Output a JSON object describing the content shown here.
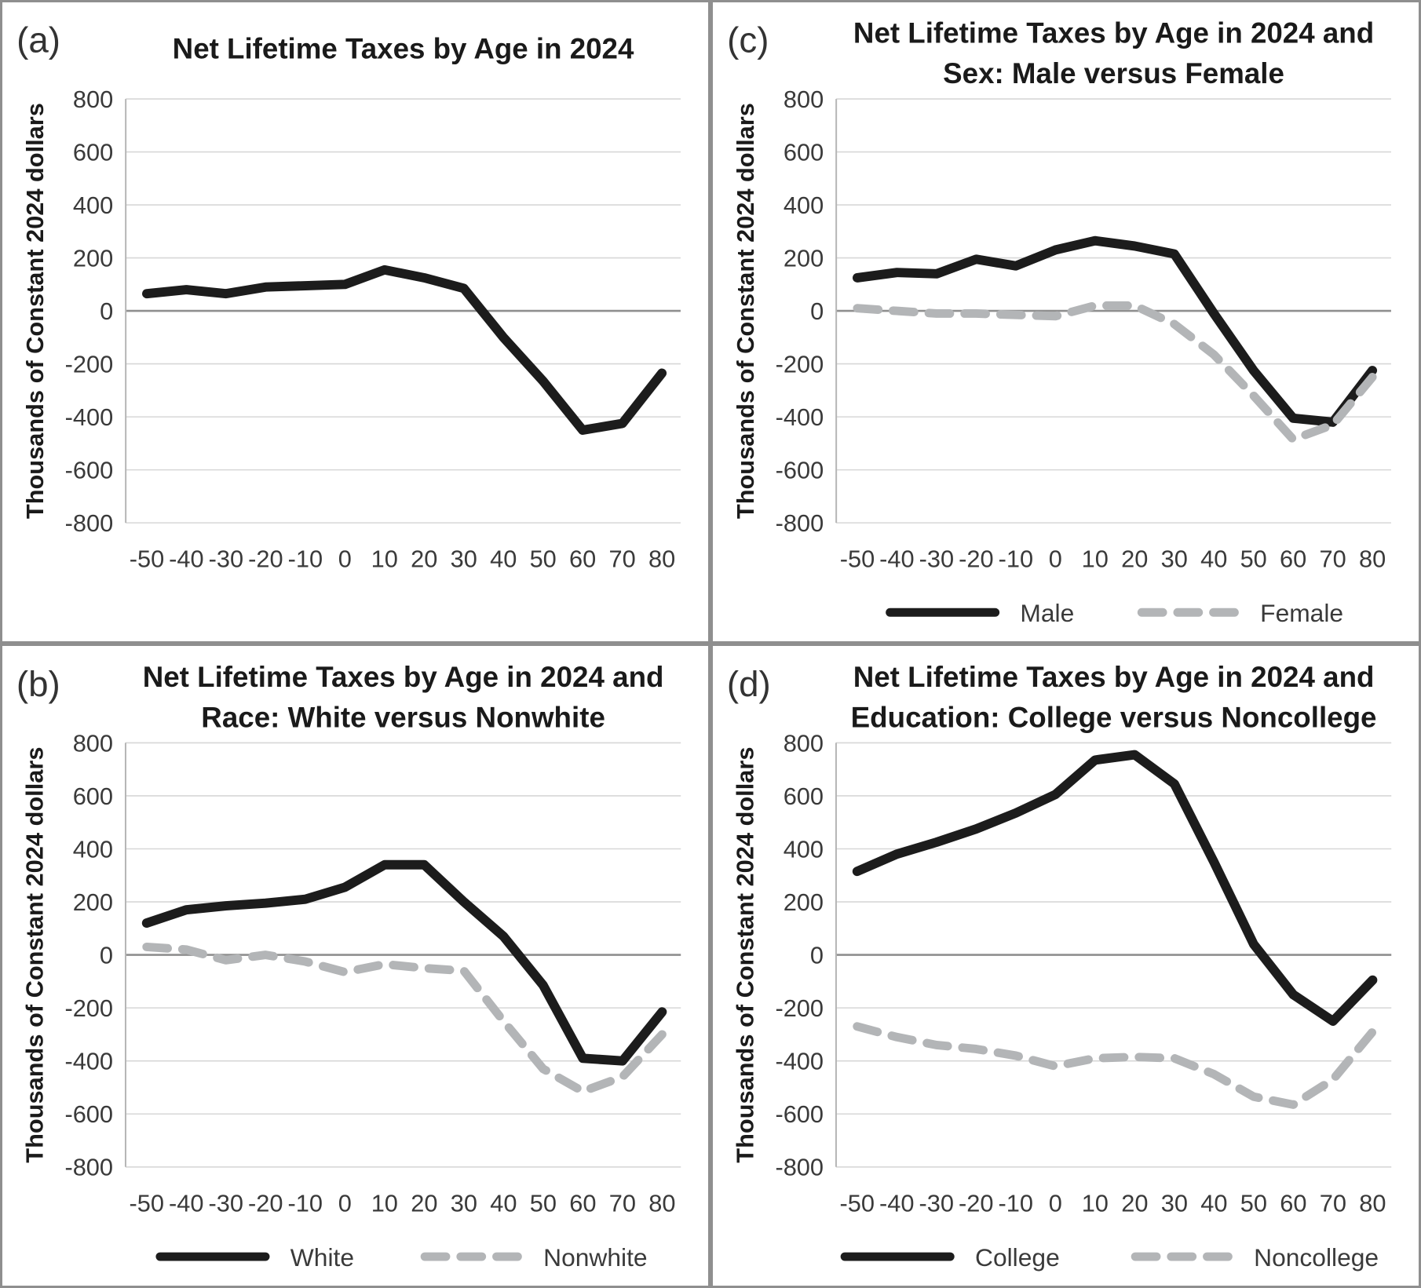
{
  "figure": {
    "description": "Four-panel line chart figure of net lifetime taxes by age in 2024",
    "panel_order": [
      "a",
      "c",
      "b",
      "d"
    ]
  },
  "style": {
    "solid_line_color": "#1c1c1c",
    "dashed_line_color": "#b3b5b7",
    "gridline_color": "#d7d7d7",
    "zero_line_color": "#8f8f8f",
    "axis_line_color": "#b5b5b5",
    "tick_text_color": "#3a3a3a",
    "title_text_color": "#1a1a1a",
    "panel_border_color": "#8f8f8f"
  },
  "chart_data": [
    {
      "id": "a",
      "position": "top-left",
      "type": "line",
      "letter": "(a)",
      "title_lines": [
        "Net Lifetime Taxes by Age in 2024"
      ],
      "ylabel": "Thousands of Constant 2024 dollars",
      "xlabel": "",
      "categories": [
        "-50",
        "-40",
        "-30",
        "-20",
        "-10",
        "0",
        "10",
        "20",
        "30",
        "40",
        "50",
        "60",
        "70",
        "80"
      ],
      "yticks": [
        800,
        600,
        400,
        200,
        0,
        -200,
        -400,
        -600,
        -800
      ],
      "ylim": [
        -800,
        800
      ],
      "grid": true,
      "legend": null,
      "series": [
        {
          "name": "Net lifetime taxes",
          "style": "solid",
          "values": [
            65,
            80,
            65,
            90,
            95,
            100,
            155,
            125,
            85,
            -100,
            -265,
            -450,
            -425,
            -235
          ]
        }
      ]
    },
    {
      "id": "c",
      "position": "top-right",
      "type": "line",
      "letter": "(c)",
      "title_lines": [
        "Net Lifetime Taxes by Age in 2024 and",
        "Sex: Male versus Female"
      ],
      "ylabel": "Thousands of Constant 2024 dollars",
      "xlabel": "",
      "categories": [
        "-50",
        "-40",
        "-30",
        "-20",
        "-10",
        "0",
        "10",
        "20",
        "30",
        "40",
        "50",
        "60",
        "70",
        "80"
      ],
      "yticks": [
        800,
        600,
        400,
        200,
        0,
        -200,
        -400,
        -600,
        -800
      ],
      "ylim": [
        -800,
        800
      ],
      "grid": true,
      "legend": [
        "Male",
        "Female"
      ],
      "series": [
        {
          "name": "Male",
          "style": "solid",
          "values": [
            125,
            145,
            140,
            195,
            170,
            230,
            265,
            245,
            215,
            -10,
            -225,
            -405,
            -420,
            -225
          ]
        },
        {
          "name": "Female",
          "style": "dashed",
          "values": [
            10,
            0,
            -10,
            -10,
            -15,
            -20,
            20,
            20,
            -50,
            -165,
            -320,
            -485,
            -430,
            -250
          ]
        }
      ]
    },
    {
      "id": "b",
      "position": "bottom-left",
      "type": "line",
      "letter": "(b)",
      "title_lines": [
        "Net Lifetime Taxes by Age in 2024 and",
        "Race: White versus Nonwhite"
      ],
      "ylabel": "Thousands of Constant 2024 dollars",
      "xlabel": "",
      "categories": [
        "-50",
        "-40",
        "-30",
        "-20",
        "-10",
        "0",
        "10",
        "20",
        "30",
        "40",
        "50",
        "60",
        "70",
        "80"
      ],
      "yticks": [
        800,
        600,
        400,
        200,
        0,
        -200,
        -400,
        -600,
        -800
      ],
      "ylim": [
        -800,
        800
      ],
      "grid": true,
      "legend": [
        "White",
        "Nonwhite"
      ],
      "series": [
        {
          "name": "White",
          "style": "solid",
          "values": [
            120,
            170,
            185,
            195,
            210,
            255,
            340,
            340,
            200,
            70,
            -115,
            -390,
            -400,
            -215
          ]
        },
        {
          "name": "Nonwhite",
          "style": "dashed",
          "values": [
            30,
            20,
            -20,
            0,
            -25,
            -65,
            -35,
            -50,
            -60,
            -250,
            -430,
            -515,
            -460,
            -300
          ]
        }
      ]
    },
    {
      "id": "d",
      "position": "bottom-right",
      "type": "line",
      "letter": "(d)",
      "title_lines": [
        "Net Lifetime Taxes by Age in 2024 and",
        "Education: College versus Noncollege"
      ],
      "ylabel": "Thousands of Constant 2024 dollars",
      "xlabel": "",
      "categories": [
        "-50",
        "-40",
        "-30",
        "-20",
        "-10",
        "0",
        "10",
        "20",
        "30",
        "40",
        "50",
        "60",
        "70",
        "80"
      ],
      "yticks": [
        800,
        600,
        400,
        200,
        0,
        -200,
        -400,
        -600,
        -800
      ],
      "ylim": [
        -800,
        800
      ],
      "grid": true,
      "legend": [
        "College",
        "Noncollege"
      ],
      "series": [
        {
          "name": "College",
          "style": "solid",
          "values": [
            315,
            380,
            425,
            475,
            535,
            605,
            735,
            755,
            645,
            350,
            40,
            -150,
            -250,
            -95
          ]
        },
        {
          "name": "Noncollege",
          "style": "dashed",
          "values": [
            -270,
            -310,
            -340,
            -355,
            -380,
            -420,
            -390,
            -385,
            -390,
            -450,
            -535,
            -565,
            -470,
            -290
          ]
        }
      ]
    }
  ]
}
